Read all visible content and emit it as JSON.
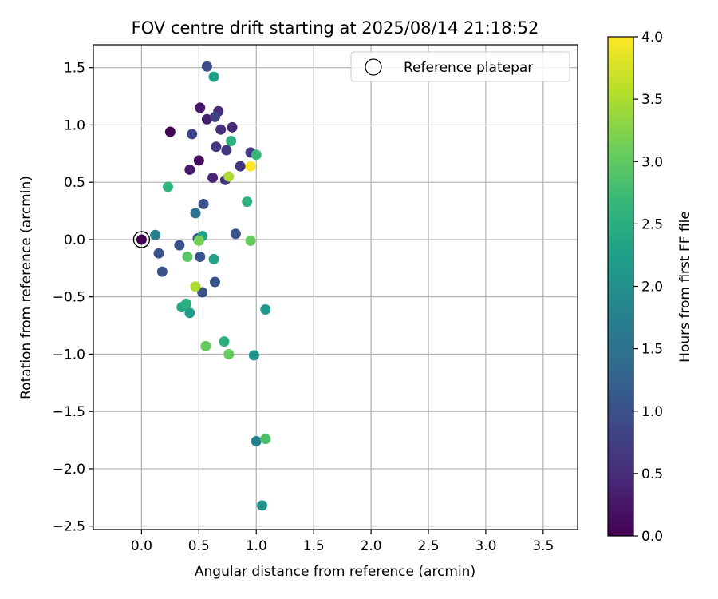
{
  "chart_data": {
    "type": "scatter",
    "title": "FOV centre drift starting at 2025/08/14 21:18:52",
    "xlabel": "Angular distance from reference (arcmin)",
    "ylabel": "Rotation from reference (arcmin)",
    "xlim": [
      -0.42,
      3.8
    ],
    "ylim": [
      -2.53,
      1.7
    ],
    "xticks": [
      0.0,
      0.5,
      1.0,
      1.5,
      2.0,
      2.5,
      3.0,
      3.5
    ],
    "xtick_labels": [
      "0.0",
      "0.5",
      "1.0",
      "1.5",
      "2.0",
      "2.5",
      "3.0",
      "3.5"
    ],
    "yticks": [
      1.5,
      1.0,
      0.5,
      0.0,
      -0.5,
      -1.0,
      -1.5,
      -2.0,
      -2.5
    ],
    "ytick_labels": [
      "1.5",
      "1.0",
      "0.5",
      "0.0",
      "−0.5",
      "−1.0",
      "−1.5",
      "−2.0",
      "−2.5"
    ],
    "grid": true,
    "legend": {
      "label": "Reference platepar",
      "placement": "top-right"
    },
    "colorbar": {
      "label": "Hours from first FF file",
      "colormap": "viridis",
      "range": [
        0.0,
        4.0
      ],
      "ticks": [
        0.0,
        0.5,
        1.0,
        1.5,
        2.0,
        2.5,
        3.0,
        3.5,
        4.0
      ],
      "tick_labels": [
        "0.0",
        "0.5",
        "1.0",
        "1.5",
        "2.0",
        "2.5",
        "3.0",
        "3.5",
        "4.0"
      ],
      "stops": [
        "#440154",
        "#482878",
        "#3e4989",
        "#31688e",
        "#26828e",
        "#1f9e89",
        "#35b779",
        "#6ece58",
        "#b5de2b",
        "#fde725"
      ]
    },
    "reference_point": {
      "x": 0.0,
      "y": 0.0,
      "hours": 0.0
    },
    "points": [
      {
        "x": 0.0,
        "y": 0.0,
        "hours": 0.0
      },
      {
        "x": 0.25,
        "y": 0.94,
        "hours": 0.05
      },
      {
        "x": 0.5,
        "y": 0.69,
        "hours": 0.1
      },
      {
        "x": 0.51,
        "y": 1.15,
        "hours": 0.25
      },
      {
        "x": 0.42,
        "y": 0.61,
        "hours": 0.3
      },
      {
        "x": 0.57,
        "y": 1.05,
        "hours": 0.35
      },
      {
        "x": 0.62,
        "y": 0.54,
        "hours": 0.4
      },
      {
        "x": 0.79,
        "y": 0.98,
        "hours": 0.45
      },
      {
        "x": 0.67,
        "y": 1.12,
        "hours": 0.5
      },
      {
        "x": 0.69,
        "y": 0.96,
        "hours": 0.55
      },
      {
        "x": 0.65,
        "y": 0.81,
        "hours": 0.6
      },
      {
        "x": 0.73,
        "y": 0.52,
        "hours": 0.6
      },
      {
        "x": 0.86,
        "y": 0.64,
        "hours": 0.6
      },
      {
        "x": 0.74,
        "y": 0.78,
        "hours": 0.65
      },
      {
        "x": 0.95,
        "y": 0.76,
        "hours": 0.65
      },
      {
        "x": 0.64,
        "y": 1.07,
        "hours": 0.8
      },
      {
        "x": 0.44,
        "y": 0.92,
        "hours": 0.85
      },
      {
        "x": 0.57,
        "y": 1.51,
        "hours": 0.95
      },
      {
        "x": 0.54,
        "y": 0.31,
        "hours": 1.0
      },
      {
        "x": 0.82,
        "y": 0.05,
        "hours": 1.0
      },
      {
        "x": 0.15,
        "y": -0.12,
        "hours": 1.0
      },
      {
        "x": 0.18,
        "y": -0.28,
        "hours": 1.0
      },
      {
        "x": 0.33,
        "y": -0.05,
        "hours": 1.05
      },
      {
        "x": 0.51,
        "y": -0.15,
        "hours": 1.05
      },
      {
        "x": 0.64,
        "y": -0.37,
        "hours": 1.05
      },
      {
        "x": 0.53,
        "y": -0.46,
        "hours": 1.05
      },
      {
        "x": 0.49,
        "y": 0.01,
        "hours": 1.15
      },
      {
        "x": 0.47,
        "y": 0.23,
        "hours": 1.5
      },
      {
        "x": 0.12,
        "y": 0.04,
        "hours": 1.7
      },
      {
        "x": 1.0,
        "y": -1.76,
        "hours": 1.75
      },
      {
        "x": 0.98,
        "y": -1.01,
        "hours": 2.05
      },
      {
        "x": 1.05,
        "y": -2.32,
        "hours": 2.05
      },
      {
        "x": 1.08,
        "y": -0.61,
        "hours": 2.1
      },
      {
        "x": 0.42,
        "y": -0.64,
        "hours": 2.2
      },
      {
        "x": 0.63,
        "y": 1.42,
        "hours": 2.25
      },
      {
        "x": 0.63,
        "y": -0.17,
        "hours": 2.3
      },
      {
        "x": 0.53,
        "y": 0.03,
        "hours": 2.3
      },
      {
        "x": 0.35,
        "y": -0.59,
        "hours": 2.4
      },
      {
        "x": 0.39,
        "y": -0.56,
        "hours": 2.5
      },
      {
        "x": 0.72,
        "y": -0.89,
        "hours": 2.5
      },
      {
        "x": 0.92,
        "y": 0.33,
        "hours": 2.55
      },
      {
        "x": 0.78,
        "y": 0.86,
        "hours": 2.55
      },
      {
        "x": 0.23,
        "y": 0.46,
        "hours": 2.6
      },
      {
        "x": 1.0,
        "y": 0.74,
        "hours": 2.65
      },
      {
        "x": 1.08,
        "y": -1.74,
        "hours": 2.85
      },
      {
        "x": 0.4,
        "y": -0.15,
        "hours": 2.95
      },
      {
        "x": 0.56,
        "y": -0.93,
        "hours": 3.05
      },
      {
        "x": 0.76,
        "y": -1.0,
        "hours": 3.05
      },
      {
        "x": 0.95,
        "y": -0.01,
        "hours": 3.05
      },
      {
        "x": 0.5,
        "y": -0.01,
        "hours": 3.15
      },
      {
        "x": 0.47,
        "y": -0.41,
        "hours": 3.5
      },
      {
        "x": 0.76,
        "y": 0.55,
        "hours": 3.5
      },
      {
        "x": 0.95,
        "y": 0.64,
        "hours": 4.0
      }
    ]
  }
}
